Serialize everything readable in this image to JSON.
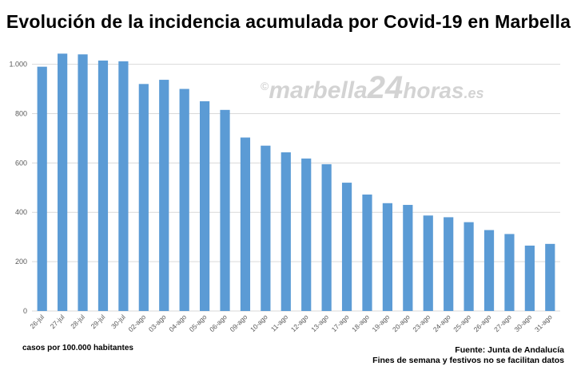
{
  "title": "Evolución de la incidencia acumulada por Covid-19 en Marbella",
  "watermark": {
    "symbol": "©",
    "part1": "marbella",
    "part2": "24",
    "part3": "horas",
    "part4": ".es"
  },
  "note": "casos por 100.000 habitantes",
  "source_line1": "Fuente: Junta de Andalucía",
  "source_line2": "Fines de semana y festivos no se facilitan datos",
  "colors": {
    "bar": "#5b9bd5",
    "grid": "#d9d9d9",
    "axis_text": "#595959"
  },
  "chart_data": {
    "type": "bar",
    "title": "Evolución de la incidencia acumulada por Covid-19 en Marbella",
    "xlabel": "",
    "ylabel": "casos por 100.000 habitantes",
    "ylim": [
      0,
      1000
    ],
    "yticks": [
      0,
      200,
      400,
      600,
      800,
      1000
    ],
    "ytick_labels": [
      "0",
      "200",
      "400",
      "600",
      "800",
      "1.000"
    ],
    "grid": true,
    "legend": "none",
    "categories": [
      "26-jul",
      "27-jul",
      "28-jul",
      "29-jul",
      "30-jul",
      "02-ago",
      "03-ago",
      "04-ago",
      "05-ago",
      "06-ago",
      "09-ago",
      "10-ago",
      "11-ago",
      "12-ago",
      "13-ago",
      "17-ago",
      "18-ago",
      "19-ago",
      "20-ago",
      "23-ago",
      "24-ago",
      "25-ago",
      "26-ago",
      "27-ago",
      "30-ago",
      "31-ago"
    ],
    "values": [
      990,
      1043,
      1040,
      1015,
      1012,
      920,
      937,
      900,
      850,
      815,
      703,
      670,
      643,
      618,
      595,
      520,
      472,
      437,
      430,
      387,
      380,
      360,
      328,
      312,
      265,
      272
    ]
  }
}
